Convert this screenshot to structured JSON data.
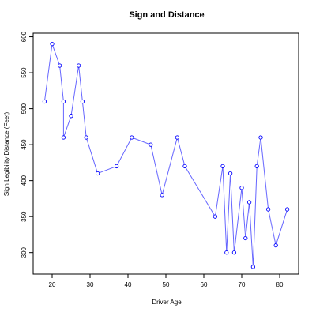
{
  "chart_data": {
    "type": "line",
    "title": "Sign and Distance",
    "xlabel": "Driver Age",
    "ylabel": "Sign Legibility Distance (Feet)",
    "xlim": [
      15,
      85
    ],
    "ylim": [
      270,
      605
    ],
    "xticks": [
      20,
      30,
      40,
      50,
      60,
      70,
      80
    ],
    "yticks": [
      300,
      350,
      400,
      450,
      500,
      550,
      600
    ],
    "grid": false,
    "series": [
      {
        "color": "#0000ff",
        "x": [
          18,
          20,
          22,
          23,
          23,
          25,
          27,
          28,
          29,
          32,
          37,
          41,
          46,
          49,
          53,
          55,
          63,
          65,
          66,
          67,
          68,
          70,
          71,
          72,
          73,
          74,
          75,
          77,
          79,
          82
        ],
        "y": [
          510,
          590,
          560,
          510,
          460,
          490,
          560,
          510,
          460,
          410,
          420,
          460,
          450,
          380,
          460,
          420,
          350,
          420,
          300,
          410,
          300,
          390,
          320,
          370,
          280,
          420,
          460,
          360,
          310,
          360
        ]
      }
    ]
  }
}
